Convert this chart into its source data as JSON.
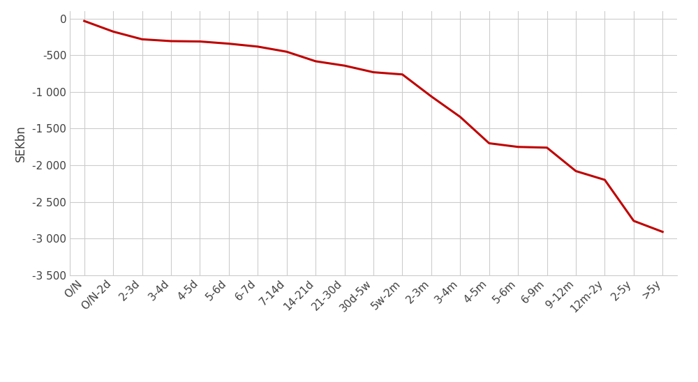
{
  "categories": [
    "O/N",
    "O/N-2d",
    "2-3d",
    "3-4d",
    "4-5d",
    "5-6d",
    "6-7d",
    "7-14d",
    "14-21d",
    "21-30d",
    "30d-5w",
    "5w-2m",
    "2-3m",
    "3-4m",
    "4-5m",
    "5-6m",
    "6-9m",
    "9-12m",
    "12m-2y",
    "2-5y",
    ">5y"
  ],
  "y_values": [
    -30,
    -175,
    -280,
    -305,
    -310,
    -340,
    -380,
    -450,
    -580,
    -640,
    -730,
    -760,
    -1060,
    -1340,
    -1700,
    -1750,
    -1760,
    -2080,
    -2200,
    -2760,
    -2910
  ],
  "line_color": "#c00000",
  "line_width": 2.2,
  "ylabel": "SEKbn",
  "ylim": [
    -3500,
    100
  ],
  "yticks": [
    0,
    -500,
    -1000,
    -1500,
    -2000,
    -2500,
    -3000,
    -3500
  ],
  "ytick_labels": [
    "0",
    "-500",
    "-1 000",
    "-1 500",
    "-2 000",
    "-2 500",
    "-3 000",
    "-3 500"
  ],
  "background_color": "#ffffff",
  "grid_color": "#cccccc",
  "axis_fontsize": 12,
  "tick_fontsize": 11,
  "xlabel_fontsize": 12,
  "ylabel_fontsize": 12
}
